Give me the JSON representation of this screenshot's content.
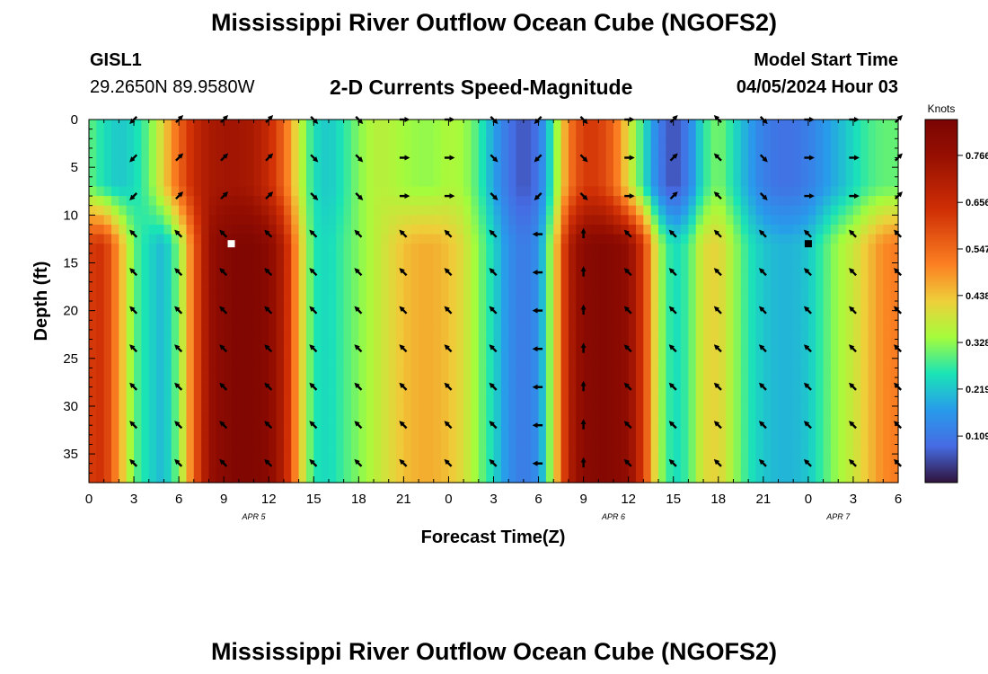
{
  "header": {
    "title": "Mississippi River Outflow Ocean Cube (NGOFS2)",
    "station_id": "GISL1",
    "station_coords": "29.2650N  89.9580W",
    "plot_title": "2-D Currents Speed-Magnitude",
    "model_start_label": "Model Start Time",
    "model_start_value": "04/05/2024 Hour 03"
  },
  "footer": {
    "title_repeat": "Mississippi River Outflow Ocean Cube (NGOFS2)"
  },
  "chart_data": {
    "type": "heatmap",
    "title": "2-D Currents Speed-Magnitude",
    "xlabel": "Forecast Time(Z)",
    "ylabel": "Depth (ft)",
    "x_tick_labels": [
      "0",
      "3",
      "6",
      "9",
      "12",
      "15",
      "18",
      "21",
      "0",
      "3",
      "6",
      "9",
      "12",
      "15",
      "18",
      "21",
      "0",
      "3",
      "6"
    ],
    "x_range_hours": [
      0,
      54
    ],
    "date_labels": [
      {
        "label": "APR 5",
        "hour": 11
      },
      {
        "label": "APR 6",
        "hour": 35
      },
      {
        "label": "APR 7",
        "hour": 50
      }
    ],
    "y_tick_labels": [
      "0",
      "5",
      "10",
      "15",
      "20",
      "25",
      "30",
      "35"
    ],
    "y_range_ft": [
      0,
      38
    ],
    "colorbar": {
      "title": "Knots",
      "ticks": [
        "0.766",
        "0.656",
        "0.547",
        "0.438",
        "0.328",
        "0.219",
        "0.109"
      ],
      "range": [
        0,
        0.85
      ]
    },
    "speed_vs_time": {
      "hours": [
        0,
        1,
        2,
        3,
        4,
        5,
        6,
        7,
        8,
        9,
        10,
        11,
        12,
        13,
        14,
        15,
        16,
        17,
        18,
        19,
        20,
        21,
        22,
        23,
        24,
        25,
        26,
        27,
        28,
        29,
        30,
        31,
        32,
        33,
        34,
        35,
        36,
        37,
        38,
        39,
        40,
        41,
        42,
        43,
        44,
        45,
        46,
        47,
        48,
        49,
        50,
        51,
        52,
        53,
        54
      ],
      "surface_knots": [
        0.3,
        0.25,
        0.22,
        0.24,
        0.3,
        0.42,
        0.55,
        0.66,
        0.72,
        0.74,
        0.74,
        0.72,
        0.66,
        0.55,
        0.38,
        0.25,
        0.22,
        0.26,
        0.32,
        0.36,
        0.36,
        0.34,
        0.33,
        0.33,
        0.35,
        0.34,
        0.28,
        0.18,
        0.1,
        0.06,
        0.1,
        0.28,
        0.52,
        0.62,
        0.62,
        0.55,
        0.4,
        0.26,
        0.12,
        0.05,
        0.12,
        0.26,
        0.32,
        0.25,
        0.18,
        0.12,
        0.1,
        0.1,
        0.12,
        0.16,
        0.2,
        0.24,
        0.28,
        0.3,
        0.3
      ],
      "deep_knots": [
        0.62,
        0.64,
        0.48,
        0.3,
        0.24,
        0.2,
        0.32,
        0.55,
        0.76,
        0.81,
        0.83,
        0.83,
        0.8,
        0.7,
        0.45,
        0.26,
        0.24,
        0.28,
        0.32,
        0.36,
        0.4,
        0.44,
        0.46,
        0.46,
        0.44,
        0.4,
        0.32,
        0.24,
        0.15,
        0.11,
        0.15,
        0.38,
        0.7,
        0.8,
        0.82,
        0.81,
        0.78,
        0.62,
        0.35,
        0.24,
        0.28,
        0.4,
        0.42,
        0.34,
        0.26,
        0.22,
        0.2,
        0.2,
        0.22,
        0.28,
        0.34,
        0.38,
        0.44,
        0.5,
        0.52
      ],
      "deep_layer_onset_ft": 10
    },
    "arrow_grid": {
      "hours": [
        3,
        6,
        9,
        12,
        15,
        18,
        21,
        24,
        27,
        30,
        33,
        36,
        39,
        42,
        45,
        48,
        51,
        54
      ],
      "depths_ft": [
        0,
        4,
        8,
        12,
        16,
        20,
        24,
        28,
        32,
        36
      ],
      "surface_direction_deg": [
        225,
        45,
        45,
        45,
        135,
        135,
        90,
        90,
        135,
        225,
        135,
        90,
        45,
        315,
        135,
        90,
        90,
        45
      ],
      "deep_direction_deg": [
        315,
        315,
        315,
        315,
        315,
        315,
        315,
        315,
        315,
        270,
        0,
        315,
        315,
        315,
        315,
        315,
        315,
        315
      ]
    },
    "markers": [
      {
        "hour": 9.5,
        "depth_ft": 13,
        "color": "#ffffff"
      },
      {
        "hour": 48,
        "depth_ft": 13,
        "color": "#000000"
      }
    ]
  }
}
